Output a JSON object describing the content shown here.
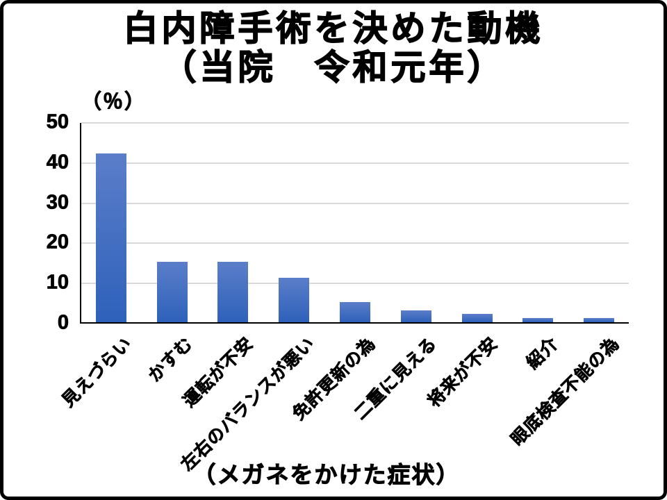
{
  "slide": {
    "title_line1": "白内障手術を決めた動機",
    "title_line2": "（当院　令和元年）"
  },
  "chart_data": {
    "type": "bar",
    "title": "白内障手術を決めた動機（当院　令和元年）",
    "unit_label": "（％）",
    "xlabel": "（メガネをかけた症状）",
    "ylabel": "",
    "categories": [
      "見えづらい",
      "かすむ",
      "運転が不安",
      "左右のバランスが悪い",
      "免許更新の為",
      "二重に見える",
      "将来が不安",
      "紹介",
      "眼底検査不能の為"
    ],
    "values": [
      42,
      15,
      15,
      11,
      5,
      3,
      2,
      1,
      1
    ],
    "ylim": [
      0,
      50
    ],
    "yticks": [
      0,
      10,
      20,
      30,
      40,
      50
    ],
    "grid": true,
    "legend": "none",
    "bar_color_top": "#5b7ec9",
    "bar_color_bottom": "#2e61ba",
    "grid_color": "#d9d9d9",
    "axis_color": "#000000"
  }
}
